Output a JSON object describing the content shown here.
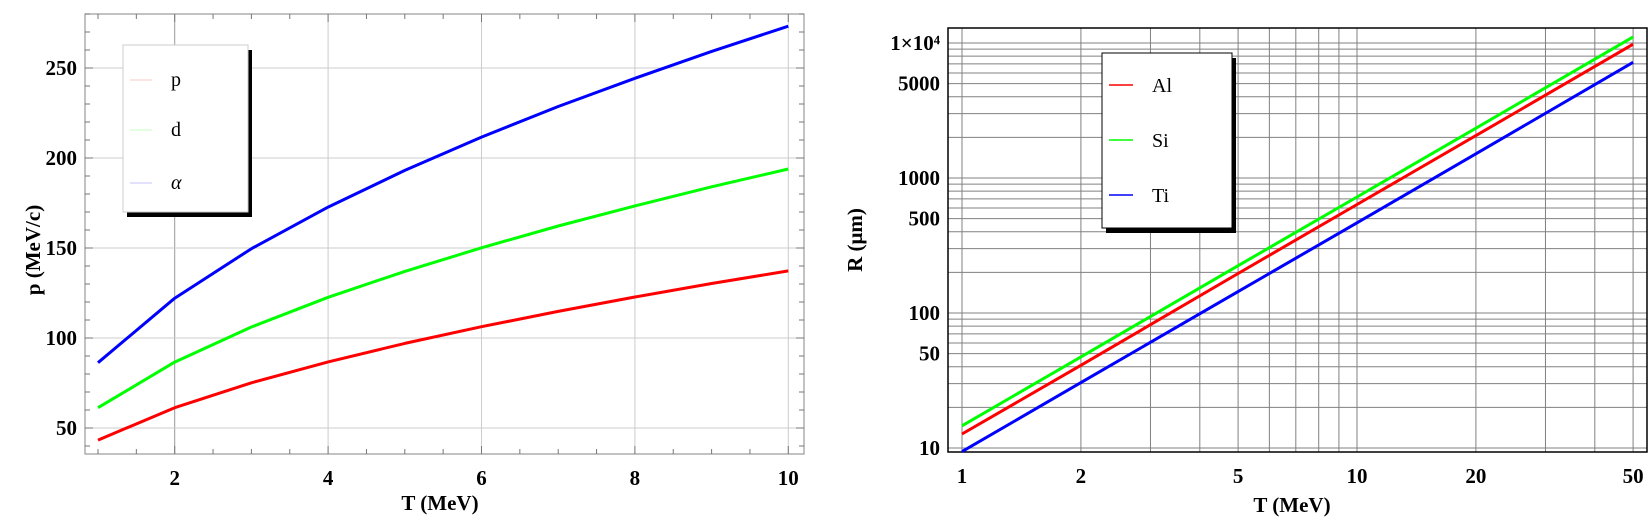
{
  "chart_data": [
    {
      "type": "line",
      "xlabel": "T (MeV)",
      "ylabel": "p (MeV/c)",
      "xlim": [
        0.9,
        10.2
      ],
      "ylim": [
        35.6,
        280
      ],
      "xscale": "linear",
      "yscale": "linear",
      "grid": true,
      "legend_position": "top-left",
      "x_ticks": [
        "2",
        "4",
        "6",
        "8",
        "10"
      ],
      "y_ticks": [
        "50",
        "100",
        "150",
        "200",
        "250"
      ],
      "x": [
        1,
        2,
        3,
        4,
        5,
        6,
        7,
        8,
        9,
        10
      ],
      "series": [
        {
          "name": "p",
          "color": "#ff0000",
          "values": [
            43.3,
            61.3,
            75.1,
            86.7,
            97.0,
            106.3,
            114.8,
            122.8,
            130.3,
            137.3
          ]
        },
        {
          "name": "d",
          "color": "#00ff00",
          "values": [
            61.3,
            86.6,
            106.1,
            122.6,
            137.0,
            150.1,
            162.2,
            173.4,
            184.0,
            193.9
          ]
        },
        {
          "name": "α",
          "color": "#0000ff",
          "values": [
            86.3,
            122.1,
            149.6,
            172.7,
            193.1,
            211.6,
            228.6,
            244.3,
            259.2,
            273.2
          ]
        }
      ]
    },
    {
      "type": "line",
      "xlabel": "T (MeV)",
      "ylabel": "R (μm)",
      "xlim": [
        0.92,
        53
      ],
      "ylim": [
        9.4,
        12900
      ],
      "xscale": "log",
      "yscale": "log",
      "grid": true,
      "legend_position": "top-center",
      "x_ticks": [
        "1",
        "2",
        "5",
        "10",
        "20",
        "50"
      ],
      "y_ticks": [
        "10",
        "50",
        "100",
        "500",
        "1000",
        "5000",
        "1×10⁴"
      ],
      "x": [
        1,
        2,
        5,
        10,
        20,
        50
      ],
      "series": [
        {
          "name": "Al",
          "color": "#ff0000",
          "values": [
            12.7,
            41,
            196,
            636,
            2060,
            9800
          ]
        },
        {
          "name": "Si",
          "color": "#00ff00",
          "values": [
            14.6,
            47.3,
            224,
            723,
            2340,
            11100
          ]
        },
        {
          "name": "Ti",
          "color": "#0000ff",
          "values": [
            9.4,
            30.5,
            144,
            466,
            1510,
            7200
          ]
        }
      ]
    }
  ]
}
